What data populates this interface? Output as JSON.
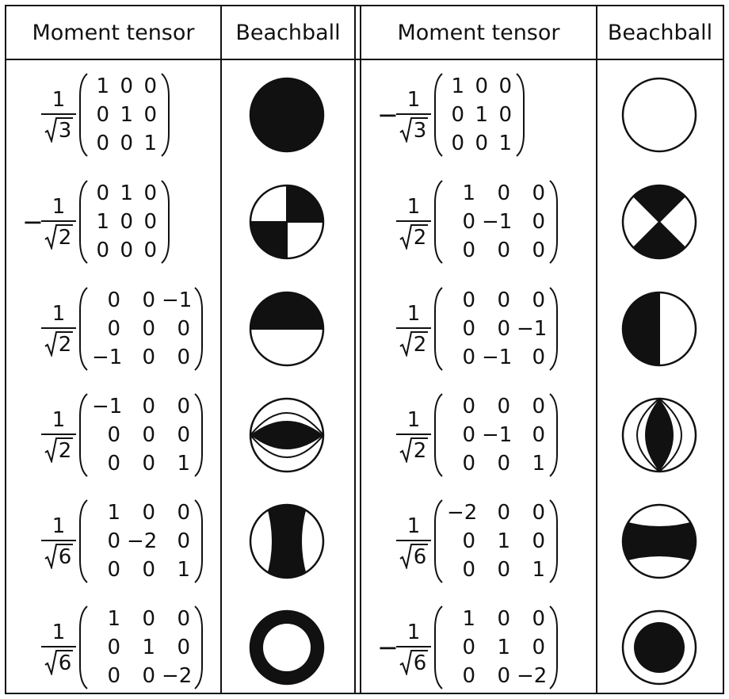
{
  "headers": [
    "Moment tensor",
    "Beachball",
    "Moment tensor",
    "Beachball"
  ],
  "rows": [
    {
      "left": {
        "sign": "",
        "numerator": "1",
        "radicand": "3",
        "matrix": [
          [
            "1",
            "0",
            "0"
          ],
          [
            "0",
            "1",
            "0"
          ],
          [
            "0",
            "0",
            "1"
          ]
        ],
        "beachball": "explosion-all-black"
      },
      "right": {
        "sign": "−",
        "numerator": "1",
        "radicand": "3",
        "matrix": [
          [
            "1",
            "0",
            "0"
          ],
          [
            "0",
            "1",
            "0"
          ],
          [
            "0",
            "0",
            "1"
          ]
        ],
        "beachball": "implosion-all-white"
      }
    },
    {
      "left": {
        "sign": "−",
        "numerator": "1",
        "radicand": "2",
        "matrix": [
          [
            "0",
            "1",
            "0"
          ],
          [
            "1",
            "0",
            "0"
          ],
          [
            "0",
            "0",
            "0"
          ]
        ],
        "beachball": "strike-slip-quadrants"
      },
      "right": {
        "sign": "",
        "numerator": "1",
        "radicand": "2",
        "matrix": [
          [
            "1",
            "0",
            "0"
          ],
          [
            "0",
            "−1",
            "0"
          ],
          [
            "0",
            "0",
            "0"
          ]
        ],
        "beachball": "strike-slip-diagonal"
      }
    },
    {
      "left": {
        "sign": "",
        "numerator": "1",
        "radicand": "2",
        "matrix": [
          [
            "0",
            "0",
            "−1"
          ],
          [
            "0",
            "0",
            "0"
          ],
          [
            "−1",
            "0",
            "0"
          ]
        ],
        "beachball": "top-half-black"
      },
      "right": {
        "sign": "",
        "numerator": "1",
        "radicand": "2",
        "matrix": [
          [
            "0",
            "0",
            "0"
          ],
          [
            "0",
            "0",
            "−1"
          ],
          [
            "0",
            "−1",
            "0"
          ]
        ],
        "beachball": "left-half-black"
      }
    },
    {
      "left": {
        "sign": "",
        "numerator": "1",
        "radicand": "2",
        "matrix": [
          [
            "−1",
            "0",
            "0"
          ],
          [
            "0",
            "0",
            "0"
          ],
          [
            "0",
            "0",
            "1"
          ]
        ],
        "beachball": "horizontal-lens"
      },
      "right": {
        "sign": "",
        "numerator": "1",
        "radicand": "2",
        "matrix": [
          [
            "0",
            "0",
            "0"
          ],
          [
            "0",
            "−1",
            "0"
          ],
          [
            "0",
            "0",
            "1"
          ]
        ],
        "beachball": "vertical-lens"
      }
    },
    {
      "left": {
        "sign": "",
        "numerator": "1",
        "radicand": "6",
        "matrix": [
          [
            "1",
            "0",
            "0"
          ],
          [
            "0",
            "−2",
            "0"
          ],
          [
            "0",
            "0",
            "1"
          ]
        ],
        "beachball": "vertical-band"
      },
      "right": {
        "sign": "",
        "numerator": "1",
        "radicand": "6",
        "matrix": [
          [
            "−2",
            "0",
            "0"
          ],
          [
            "0",
            "1",
            "0"
          ],
          [
            "0",
            "0",
            "1"
          ]
        ],
        "beachball": "horizontal-band"
      }
    },
    {
      "left": {
        "sign": "",
        "numerator": "1",
        "radicand": "6",
        "matrix": [
          [
            "1",
            "0",
            "0"
          ],
          [
            "0",
            "1",
            "0"
          ],
          [
            "0",
            "0",
            "−2"
          ]
        ],
        "beachball": "black-ring"
      },
      "right": {
        "sign": "−",
        "numerator": "1",
        "radicand": "6",
        "matrix": [
          [
            "1",
            "0",
            "0"
          ],
          [
            "0",
            "1",
            "0"
          ],
          [
            "0",
            "0",
            "−2"
          ]
        ],
        "beachball": "black-core"
      }
    }
  ]
}
